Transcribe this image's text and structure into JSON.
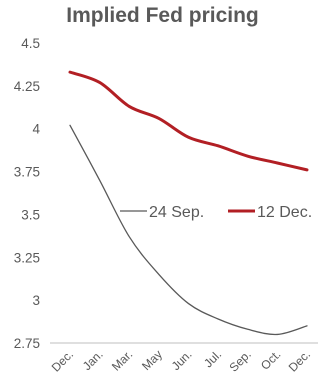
{
  "chart_data": {
    "type": "line",
    "title": "Implied Fed pricing",
    "xlabel": "",
    "ylabel": "",
    "categories": [
      "Dec.",
      "Jan.",
      "Mar.",
      "May",
      "Jun.",
      "Jul.",
      "Sep.",
      "Oct.",
      "Dec."
    ],
    "ylim": [
      2.75,
      4.5
    ],
    "yticks": [
      "4.5",
      "4.25",
      "4",
      "3.75",
      "3.5",
      "3.25",
      "3",
      "2.75"
    ],
    "grid": false,
    "legend_position": "center-right",
    "series": [
      {
        "name": "24 Sep.",
        "color": "#595959",
        "values": [
          4.02,
          3.7,
          3.37,
          3.15,
          2.98,
          2.89,
          2.83,
          2.8,
          2.85
        ]
      },
      {
        "name": "12 Dec.",
        "color": "#b21f24",
        "values": [
          4.33,
          4.27,
          4.13,
          4.06,
          3.95,
          3.9,
          3.84,
          3.8,
          3.76
        ]
      }
    ]
  }
}
